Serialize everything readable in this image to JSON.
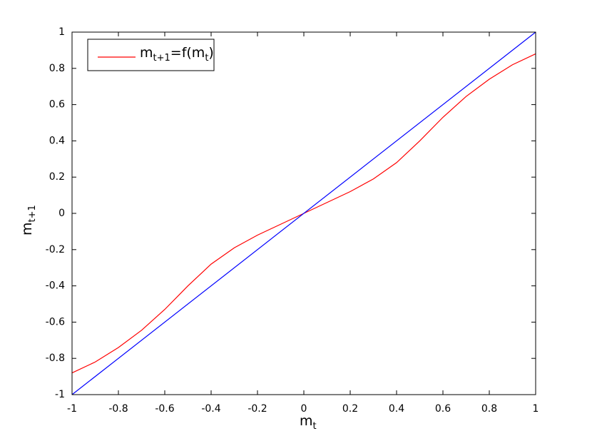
{
  "chart_data": {
    "type": "line",
    "xlabel": [
      "m",
      "t"
    ],
    "ylabel": [
      "m",
      "t+1"
    ],
    "xlim": [
      -1,
      1
    ],
    "ylim": [
      -1,
      1
    ],
    "xticks": [
      -1,
      -0.8,
      -0.6,
      -0.4,
      -0.2,
      0,
      0.2,
      0.4,
      0.6,
      0.8,
      1
    ],
    "yticks": [
      -1,
      -0.8,
      -0.6,
      -0.4,
      -0.2,
      0,
      0.2,
      0.4,
      0.6,
      0.8,
      1
    ],
    "legend": "upper left",
    "series": [
      {
        "name": [
          "m",
          "t+1",
          "=f(m",
          "t",
          ")"
        ],
        "color": "#ff0000",
        "x": [
          -1,
          -0.9,
          -0.8,
          -0.7,
          -0.6,
          -0.5,
          -0.4,
          -0.3,
          -0.2,
          -0.1,
          0,
          0.1,
          0.2,
          0.3,
          0.4,
          0.5,
          0.6,
          0.7,
          0.8,
          0.9,
          1
        ],
        "values": [
          -0.88,
          -0.82,
          -0.74,
          -0.645,
          -0.53,
          -0.4,
          -0.28,
          -0.19,
          -0.12,
          -0.06,
          0,
          0.06,
          0.12,
          0.19,
          0.28,
          0.4,
          0.53,
          0.645,
          0.74,
          0.82,
          0.88
        ]
      },
      {
        "color": "#0000ff",
        "x": [
          -1,
          1
        ],
        "values": [
          -1,
          1
        ]
      }
    ]
  }
}
